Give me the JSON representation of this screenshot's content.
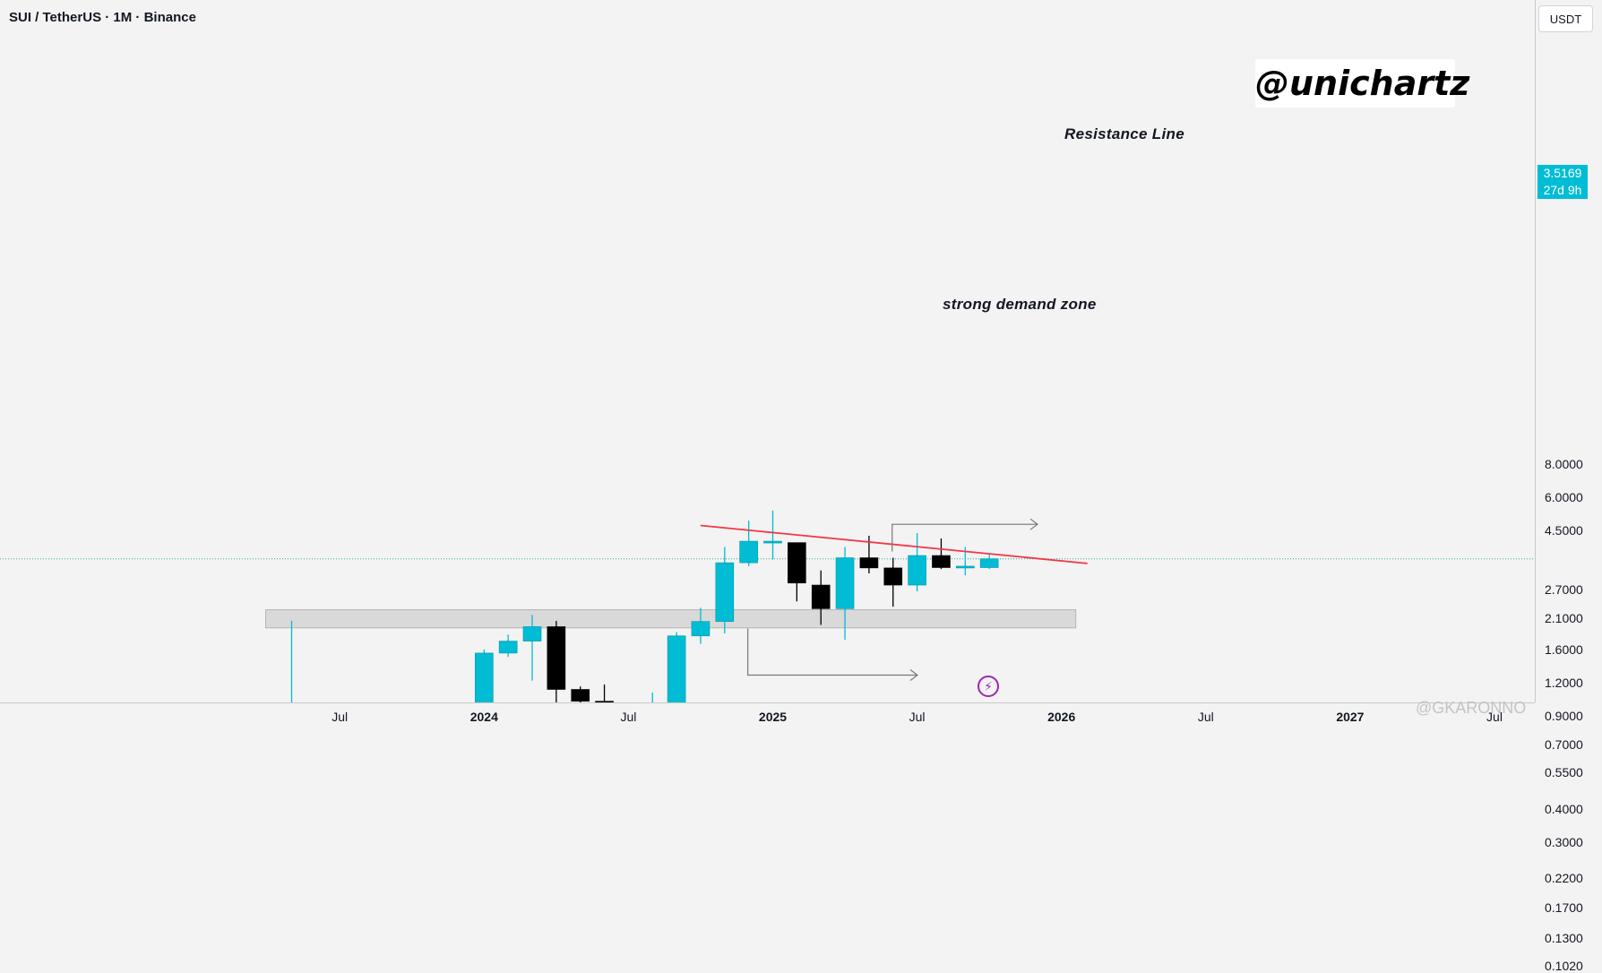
{
  "header": {
    "title": "SUI / TetherUS · 1M · Binance"
  },
  "price_axis": {
    "currency": "USDT",
    "current_price": "3.5169",
    "countdown": "27d 9h"
  },
  "watermark": {
    "text": "@unichartz"
  },
  "site_watermark": {
    "text": "@GKARONNO"
  },
  "colors": {
    "up": "#00bcd4",
    "down": "#000000",
    "resistance": "#f23645",
    "zone_fill": "#d9d9d9",
    "zone_border": "#b5b5b5",
    "grid_line": "#26a69a",
    "accent": "#9c27b0"
  },
  "chart_data": {
    "type": "candlestick",
    "title": "SUI / TetherUS · 1M · Binance",
    "ylabel": "USDT",
    "y_scale": "log",
    "ylim": [
      0.095,
      10.5
    ],
    "x_axis": {
      "ticks": [
        "Jul",
        "2024",
        "Jul",
        "2025",
        "Jul",
        "2026",
        "Jul",
        "2027",
        "Jul"
      ],
      "bold_ticks": [
        "2024",
        "2025",
        "2026",
        "2027"
      ]
    },
    "y_axis": {
      "ticks": [
        "8.0000",
        "6.0000",
        "4.5000",
        "3.5169",
        "2.7000",
        "2.1000",
        "1.6000",
        "1.2000",
        "0.9000",
        "0.7000",
        "0.5500",
        "0.4000",
        "0.3000",
        "0.2200",
        "0.1700",
        "0.1300",
        "0.1020"
      ]
    },
    "candles": [
      {
        "date": "2023-05",
        "open": 0.105,
        "high": 2.05,
        "low": 0.105,
        "close": 0.98
      },
      {
        "date": "2023-06",
        "open": 0.98,
        "high": 0.98,
        "low": 0.52,
        "close": 0.69
      },
      {
        "date": "2023-07",
        "open": 0.69,
        "high": 0.8,
        "low": 0.61,
        "close": 0.61
      },
      {
        "date": "2023-08",
        "open": 0.63,
        "high": 0.64,
        "low": 0.47,
        "close": 0.51
      },
      {
        "date": "2023-09",
        "open": 0.51,
        "high": 0.52,
        "low": 0.445,
        "close": 0.48
      },
      {
        "date": "2023-10",
        "open": 0.48,
        "high": 0.51,
        "low": 0.42,
        "close": 0.45
      },
      {
        "date": "2023-11",
        "open": 0.45,
        "high": 0.69,
        "low": 0.44,
        "close": 0.59
      },
      {
        "date": "2023-12",
        "open": 0.59,
        "high": 0.88,
        "low": 0.57,
        "close": 0.78
      },
      {
        "date": "2024-01",
        "open": 0.78,
        "high": 1.6,
        "low": 0.67,
        "close": 1.55
      },
      {
        "date": "2024-02",
        "open": 1.55,
        "high": 1.82,
        "low": 1.5,
        "close": 1.72
      },
      {
        "date": "2024-03",
        "open": 1.72,
        "high": 2.16,
        "low": 1.22,
        "close": 1.95
      },
      {
        "date": "2024-04",
        "open": 1.95,
        "high": 2.05,
        "low": 0.89,
        "close": 1.13
      },
      {
        "date": "2024-05",
        "open": 1.13,
        "high": 1.16,
        "low": 0.89,
        "close": 1.02
      },
      {
        "date": "2024-06",
        "open": 1.02,
        "high": 1.18,
        "low": 0.76,
        "close": 0.82
      },
      {
        "date": "2024-07",
        "open": 0.82,
        "high": 0.9,
        "low": 0.59,
        "close": 0.71
      },
      {
        "date": "2024-08",
        "open": 0.71,
        "high": 1.1,
        "low": 0.47,
        "close": 0.8
      },
      {
        "date": "2024-09",
        "open": 0.8,
        "high": 1.86,
        "low": 0.8,
        "close": 1.8
      },
      {
        "date": "2024-10",
        "open": 1.8,
        "high": 2.3,
        "low": 1.68,
        "close": 2.04
      },
      {
        "date": "2024-11",
        "open": 2.04,
        "high": 3.9,
        "low": 1.84,
        "close": 3.4
      },
      {
        "date": "2024-12",
        "open": 3.4,
        "high": 4.9,
        "low": 3.3,
        "close": 4.1
      },
      {
        "date": "2025-01",
        "open": 4.05,
        "high": 5.35,
        "low": 3.5,
        "close": 4.1
      },
      {
        "date": "2025-02",
        "open": 4.05,
        "high": 4.05,
        "low": 2.43,
        "close": 2.85
      },
      {
        "date": "2025-03",
        "open": 2.8,
        "high": 3.18,
        "low": 1.98,
        "close": 2.28
      },
      {
        "date": "2025-04",
        "open": 2.28,
        "high": 3.9,
        "low": 1.74,
        "close": 3.55
      },
      {
        "date": "2025-05",
        "open": 3.55,
        "high": 4.3,
        "low": 3.1,
        "close": 3.25
      },
      {
        "date": "2025-06",
        "open": 3.25,
        "high": 3.55,
        "low": 2.32,
        "close": 2.8
      },
      {
        "date": "2025-07",
        "open": 2.8,
        "high": 4.4,
        "low": 2.65,
        "close": 3.62
      },
      {
        "date": "2025-08",
        "open": 3.62,
        "high": 4.2,
        "low": 3.22,
        "close": 3.26
      },
      {
        "date": "2025-09",
        "open": 3.3,
        "high": 3.9,
        "low": 3.05,
        "close": 3.3
      },
      {
        "date": "2025-10",
        "open": 3.26,
        "high": 3.65,
        "low": 3.22,
        "close": 3.5169
      }
    ],
    "annotations": [
      {
        "label": "Resistance Line",
        "type": "trendline",
        "from": {
          "date": "2024-11",
          "price": 4.7
        },
        "to": {
          "date": "2026-01",
          "price": 3.38
        }
      },
      {
        "label": "strong demand zone",
        "type": "zone",
        "from_date": "2023-05",
        "to_date": "2026-01",
        "price_low": 1.93,
        "price_high": 2.26
      }
    ]
  }
}
